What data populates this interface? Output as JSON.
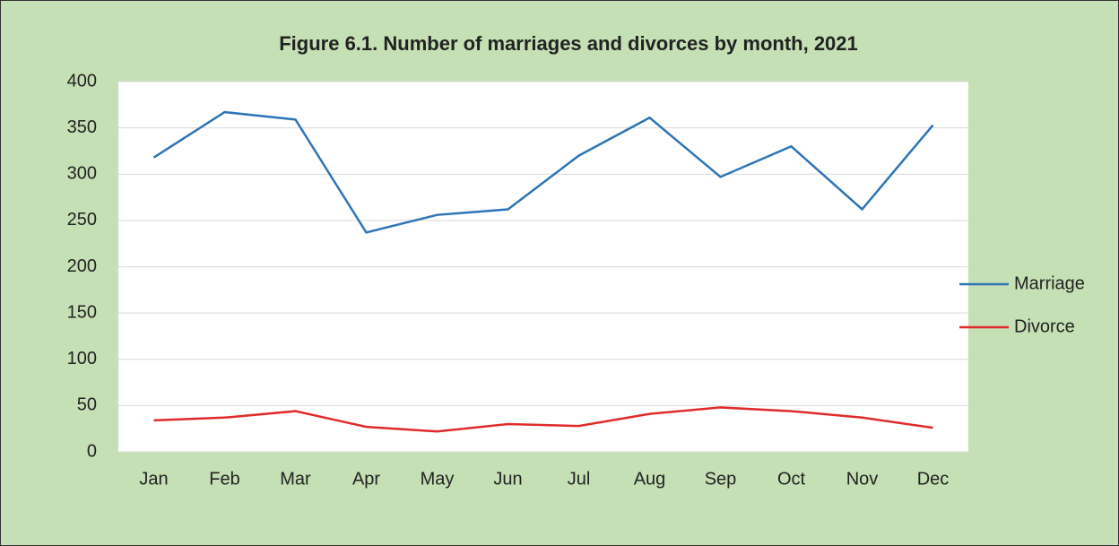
{
  "chart_data": {
    "type": "line",
    "title": "Figure 6.1. Number of marriages and divorces by month, 2021",
    "categories": [
      "Jan",
      "Feb",
      "Mar",
      "Apr",
      "May",
      "Jun",
      "Jul",
      "Aug",
      "Sep",
      "Oct",
      "Nov",
      "Dec"
    ],
    "series": [
      {
        "name": "Marriage",
        "color": "#2e75b6",
        "values": [
          318,
          367,
          359,
          237,
          256,
          262,
          320,
          361,
          297,
          330,
          262,
          353
        ]
      },
      {
        "name": "Divorce",
        "color": "#e02b2b",
        "values": [
          34,
          37,
          44,
          27,
          22,
          30,
          28,
          41,
          48,
          44,
          37,
          26
        ]
      }
    ],
    "ylim": [
      0,
      400
    ],
    "yticks": [
      0,
      50,
      100,
      150,
      200,
      250,
      300,
      350,
      400
    ],
    "grid": true,
    "legend": "right"
  }
}
